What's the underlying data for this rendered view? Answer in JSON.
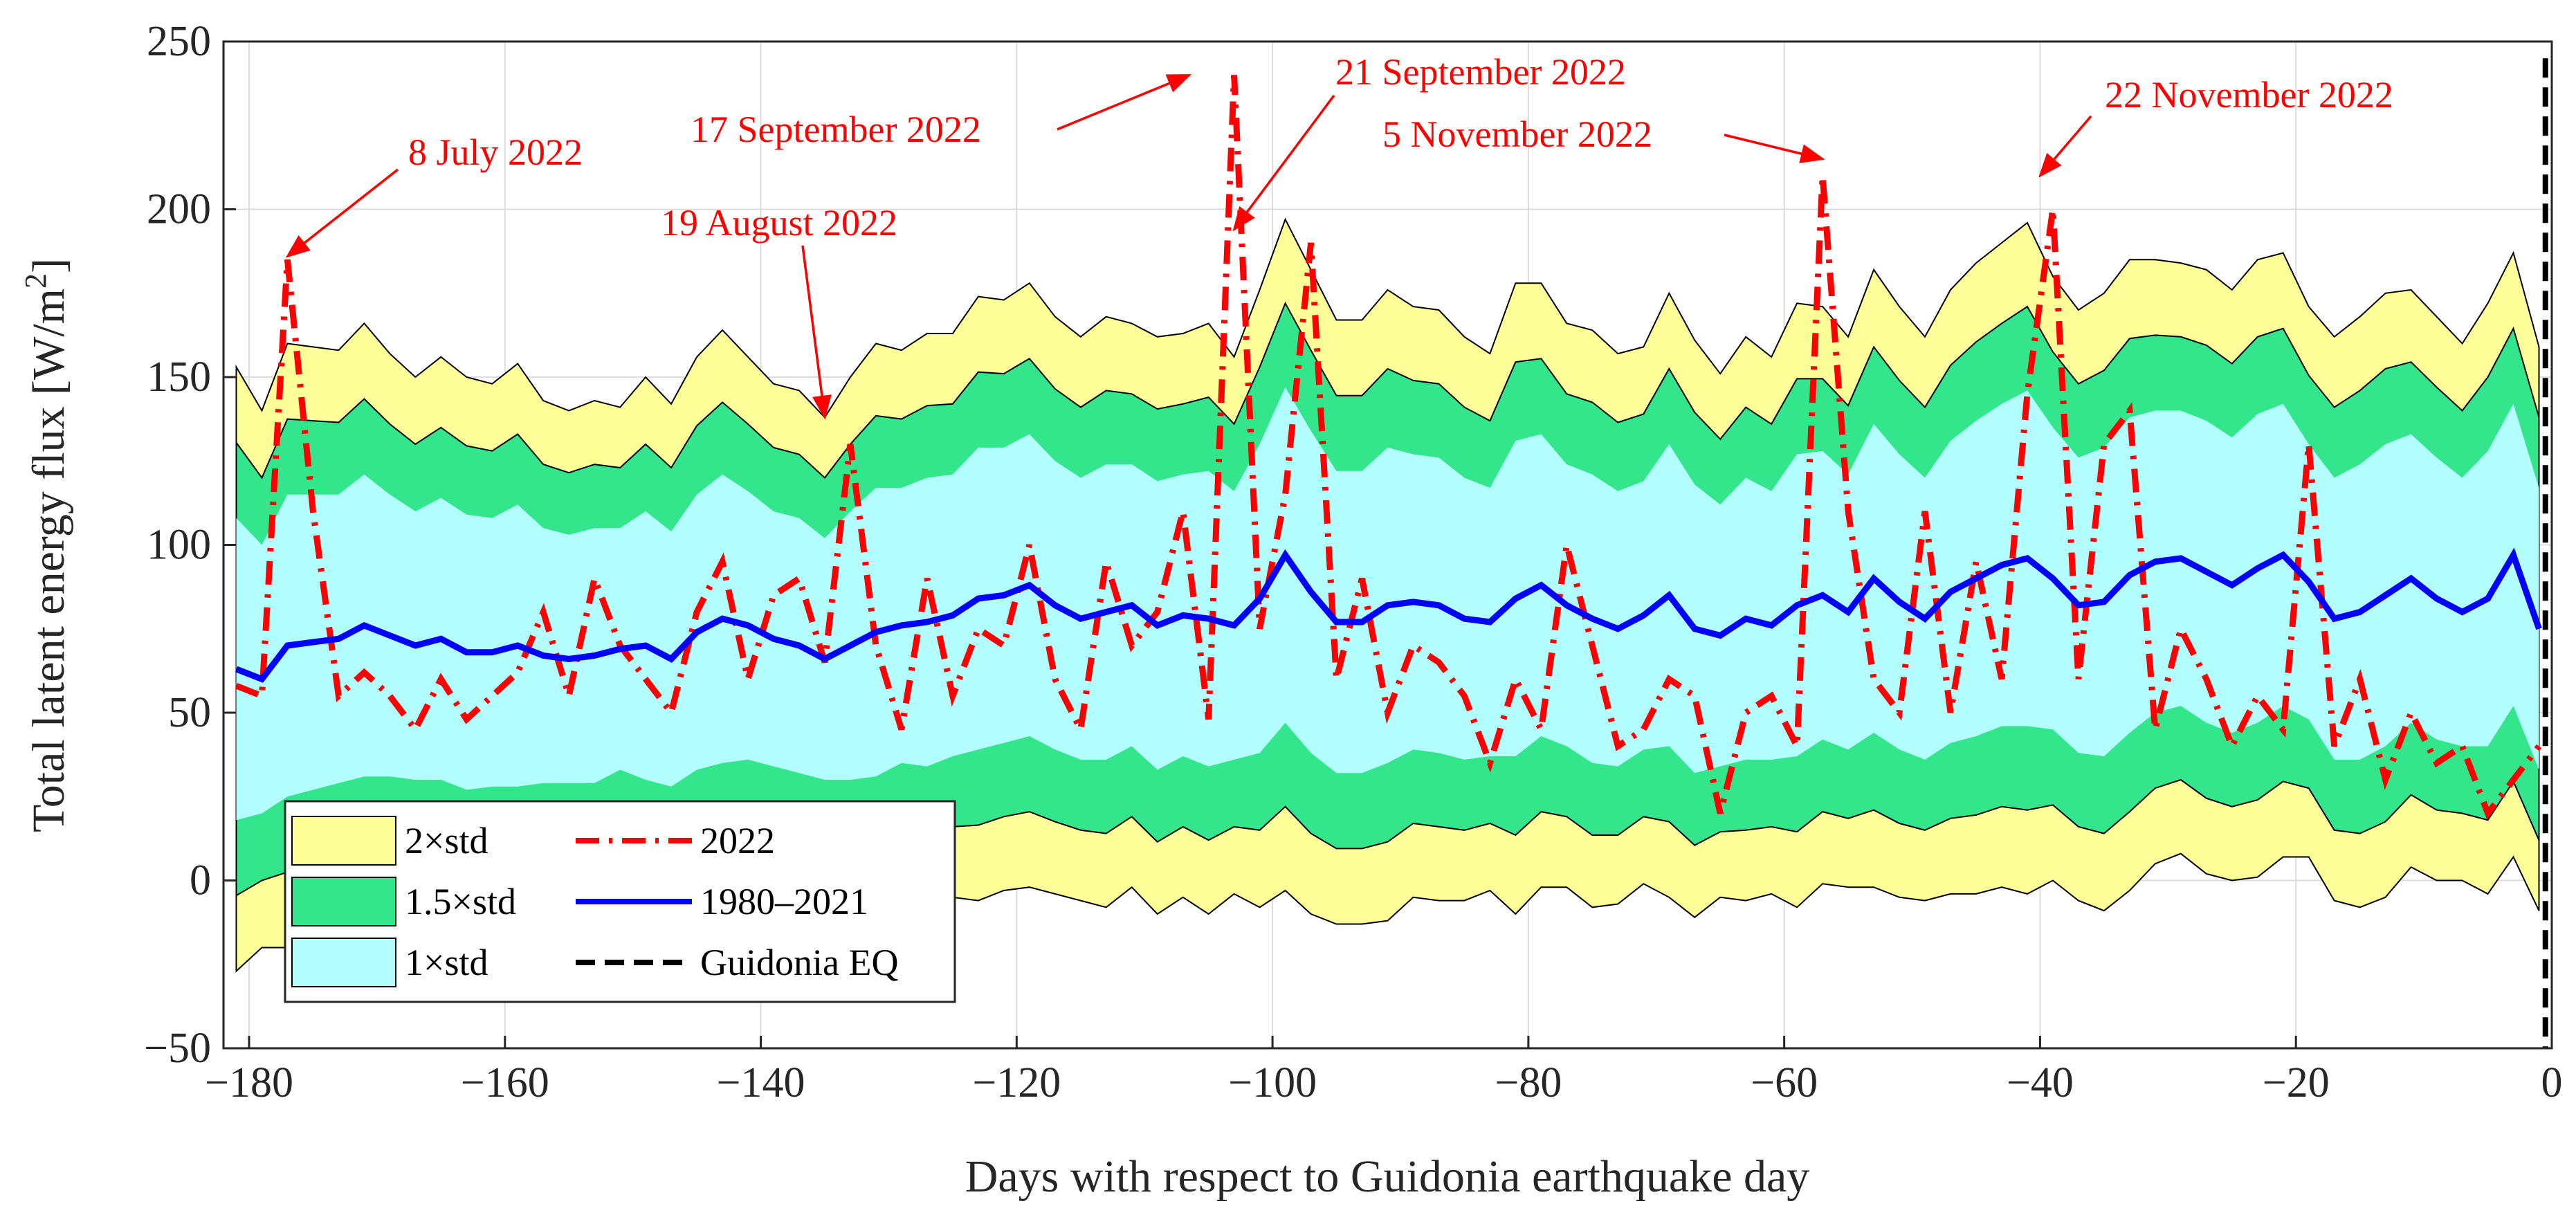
{
  "chart_data": {
    "type": "line",
    "title": "",
    "xlabel": "Days with respect to Guidonia earthquake day",
    "ylabel_main": "Total latent energy flux [W/m",
    "ylabel_sup": "2",
    "ylabel_close": "]",
    "xlim": [
      -182,
      0
    ],
    "ylim": [
      -50,
      250
    ],
    "xticks": [
      -180,
      -160,
      -140,
      -120,
      -100,
      -80,
      -60,
      -40,
      -20,
      0
    ],
    "yticks": [
      -50,
      0,
      50,
      100,
      150,
      200,
      250
    ],
    "xtick_labels": [
      "−180",
      "−160",
      "−140",
      "−120",
      "−100",
      "−80",
      "−60",
      "−40",
      "−20",
      "0"
    ],
    "ytick_labels": [
      "−50",
      "0",
      "50",
      "100",
      "150",
      "200",
      "250"
    ],
    "grid": true,
    "colors": {
      "band2": "#ffff99",
      "band15": "#33e68c",
      "band1": "#b3ffff",
      "mean": "#0000ff",
      "year2022": "#ff0000",
      "eq": "#000000",
      "grid": "#dcdcdc"
    },
    "x": [
      -181,
      -179,
      -177,
      -175,
      -173,
      -171,
      -169,
      -167,
      -165,
      -163,
      -161,
      -159,
      -157,
      -155,
      -153,
      -151,
      -149,
      -147,
      -145,
      -143,
      -141,
      -139,
      -137,
      -135,
      -133,
      -131,
      -129,
      -127,
      -125,
      -123,
      -121,
      -119,
      -117,
      -115,
      -113,
      -111,
      -109,
      -107,
      -105,
      -103,
      -101,
      -99,
      -97,
      -95,
      -93,
      -91,
      -89,
      -87,
      -85,
      -83,
      -81,
      -79,
      -77,
      -75,
      -73,
      -71,
      -69,
      -67,
      -65,
      -63,
      -61,
      -59,
      -57,
      -55,
      -53,
      -51,
      -49,
      -47,
      -45,
      -43,
      -41,
      -39,
      -37,
      -35,
      -33,
      -31,
      -29,
      -27,
      -25,
      -23,
      -21,
      -19,
      -17,
      -15,
      -13,
      -11,
      -9,
      -7,
      -5,
      -3,
      -1
    ],
    "mean_1980_2021": [
      63,
      60,
      70,
      71,
      72,
      76,
      73,
      70,
      72,
      68,
      68,
      70,
      67,
      66,
      67,
      69,
      70,
      66,
      74,
      78,
      76,
      72,
      70,
      66,
      70,
      74,
      76,
      77,
      79,
      84,
      85,
      88,
      82,
      78,
      80,
      82,
      76,
      79,
      78,
      76,
      84,
      97,
      86,
      77,
      77,
      82,
      83,
      82,
      78,
      77,
      84,
      88,
      82,
      78,
      75,
      79,
      85,
      75,
      73,
      78,
      76,
      82,
      85,
      80,
      90,
      83,
      78,
      86,
      90,
      94,
      96,
      90,
      82,
      83,
      91,
      95,
      96,
      92,
      88,
      93,
      97,
      89,
      78,
      80,
      85,
      90,
      84,
      80,
      84,
      97,
      75
    ],
    "std1": [
      45,
      40,
      45,
      44,
      43,
      45,
      42,
      40,
      42,
      41,
      40,
      42,
      38,
      37,
      38,
      36,
      40,
      38,
      41,
      43,
      40,
      38,
      38,
      36,
      40,
      43,
      41,
      43,
      42,
      45,
      44,
      45,
      43,
      42,
      44,
      42,
      43,
      42,
      44,
      40,
      46,
      50,
      48,
      45,
      45,
      47,
      44,
      44,
      42,
      40,
      47,
      45,
      42,
      43,
      41,
      40,
      45,
      43,
      39,
      42,
      40,
      45,
      43,
      41,
      46,
      44,
      42,
      45,
      47,
      48,
      50,
      45,
      44,
      46,
      47,
      45,
      44,
      45,
      44,
      46,
      45,
      41,
      42,
      44,
      45,
      43,
      42,
      40,
      44,
      45,
      42
    ],
    "series_2022": [
      58,
      55,
      185,
      110,
      55,
      62,
      55,
      45,
      60,
      48,
      55,
      62,
      80,
      55,
      90,
      70,
      60,
      50,
      80,
      95,
      60,
      85,
      90,
      65,
      130,
      70,
      45,
      90,
      55,
      75,
      70,
      100,
      60,
      45,
      95,
      70,
      80,
      110,
      48,
      240,
      75,
      115,
      190,
      60,
      90,
      50,
      70,
      65,
      55,
      35,
      60,
      45,
      100,
      70,
      40,
      45,
      60,
      55,
      20,
      50,
      55,
      40,
      210,
      110,
      60,
      50,
      110,
      50,
      95,
      60,
      145,
      200,
      60,
      130,
      140,
      45,
      75,
      60,
      40,
      55,
      45,
      130,
      40,
      60,
      30,
      50,
      35,
      40,
      20,
      30,
      40
    ]
  },
  "legend": {
    "band2": "2×std",
    "band15": "1.5×std",
    "band1": "1×std",
    "y2022": "2022",
    "mean": "1980–2021",
    "eq": "Guidonia EQ"
  },
  "annotations": [
    {
      "text": "8 July 2022",
      "tip_day": -177,
      "tip_value": 186
    },
    {
      "text": "19 August 2022",
      "tip_day": -135,
      "tip_value": 138
    },
    {
      "text": "17 September 2022",
      "tip_day": -106.5,
      "tip_value": 240
    },
    {
      "text": "21 September 2022",
      "tip_day": -103,
      "tip_value": 194
    },
    {
      "text": "5 November 2022",
      "tip_day": -57,
      "tip_value": 215
    },
    {
      "text": "22 November  2022",
      "tip_day": -40,
      "tip_value": 210
    }
  ]
}
